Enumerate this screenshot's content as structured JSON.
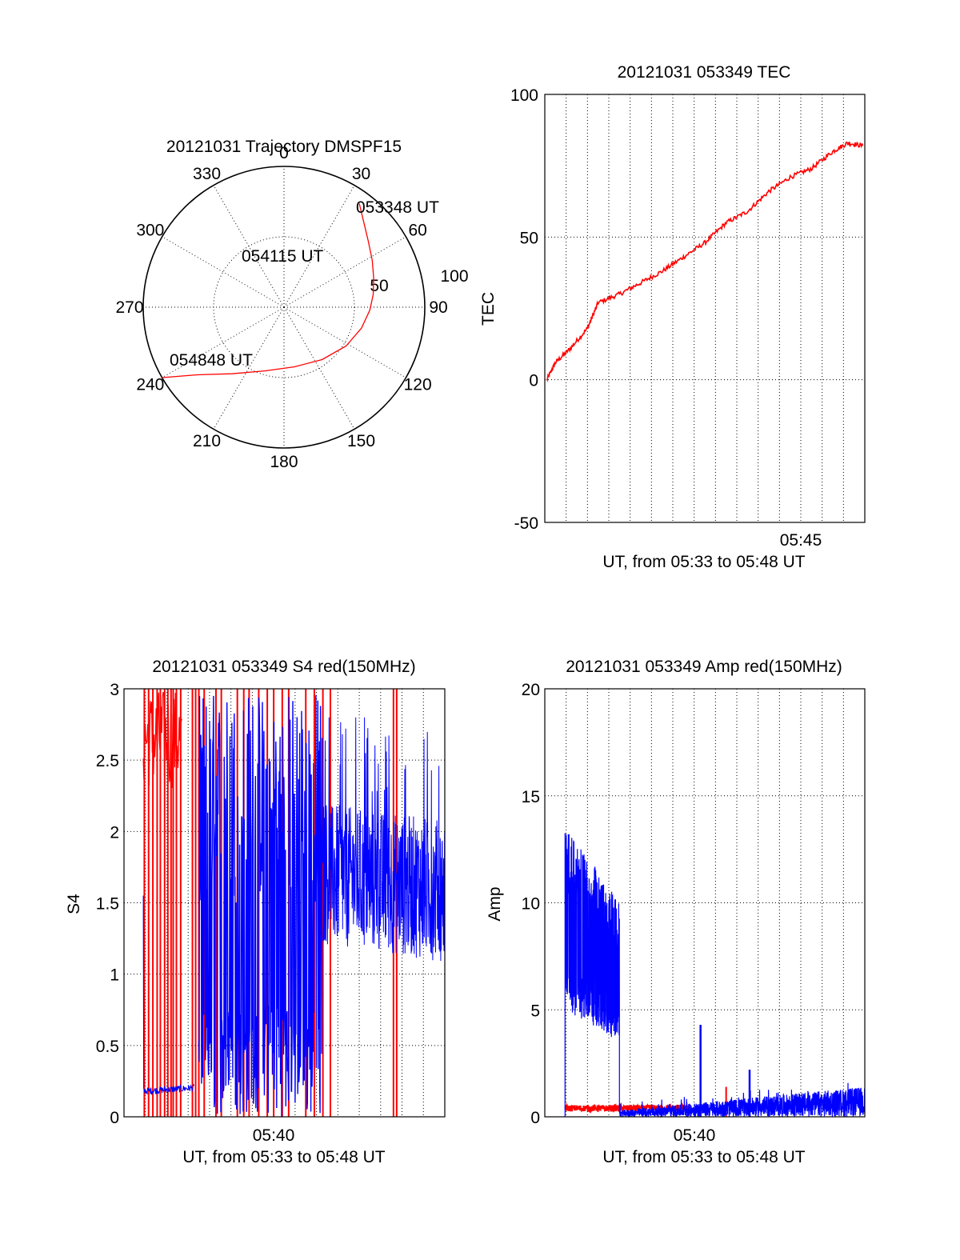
{
  "colors": {
    "red_channel": "#ff0000",
    "blue_channel": "#0000ff",
    "grid": "#000000",
    "background": "#ffffff"
  },
  "chart_data": [
    {
      "id": "trajectory",
      "type": "scatter",
      "projection": "polar",
      "title": "20121031 Trajectory DMSPF15",
      "angle_tick_labels": [
        "0",
        "30",
        "60",
        "90",
        "120",
        "150",
        "180",
        "210",
        "240",
        "270",
        "300",
        "330"
      ],
      "radial_tick_labels": [
        "50",
        "100"
      ],
      "zenith_range": [
        0,
        100
      ],
      "grid": true,
      "annotations": [
        "053348 UT",
        "054115 UT",
        "054848 UT"
      ],
      "series": [
        {
          "azimuth_deg": [
            36,
            44,
            52,
            62,
            72,
            82,
            92,
            105,
            122,
            144,
            170,
            196,
            218,
            232,
            240
          ],
          "zenith_deg": [
            91,
            82,
            76,
            71,
            67,
            64,
            61,
            57,
            52,
            46,
            43,
            47,
            60,
            78,
            100
          ]
        }
      ]
    },
    {
      "id": "tec",
      "type": "line",
      "title": "20121031 053349 TEC",
      "xlabel": "UT, from 05:33 to 05:48 UT",
      "ylabel": "TEC",
      "x_tick_labels": [
        "05:45"
      ],
      "y_tick_labels": [
        "100",
        "50",
        "0",
        "-50"
      ],
      "xlim_minutes": [
        0,
        15
      ],
      "ylim": [
        -50,
        100
      ],
      "grid": true,
      "series": [
        {
          "x_min": [
            0.1,
            0.5,
            1.2,
            2.0,
            2.5,
            3.5,
            4.5,
            5.5,
            6.5,
            7.5,
            8.5,
            9.5,
            10.5,
            11.5,
            12.5,
            13.5,
            14.2,
            14.9
          ],
          "values": [
            0,
            6,
            11,
            18,
            27,
            30,
            34,
            38,
            43,
            48,
            55,
            59,
            66,
            71,
            74,
            80,
            83,
            82
          ]
        }
      ]
    },
    {
      "id": "s4",
      "type": "line",
      "title": "20121031 053349 S4 red(150MHz)",
      "xlabel": "UT, from 05:33 to 05:48 UT",
      "ylabel": "S4",
      "x_tick_labels": [
        "05:40"
      ],
      "y_tick_labels": [
        "3",
        "2.5",
        "2",
        "1.5",
        "1",
        "0.5",
        "0"
      ],
      "xlim_minutes": [
        0,
        15
      ],
      "ylim": [
        0,
        3
      ],
      "grid": true,
      "series": [
        {
          "name_color": "red",
          "spike_x_min": [
            0.95,
            1.15,
            1.35,
            1.55,
            1.7,
            1.9,
            2.05,
            2.2,
            2.3,
            2.45,
            2.65,
            3.2,
            3.35,
            3.5,
            3.75,
            4.3,
            4.55,
            5.3,
            5.6,
            5.85,
            6.3,
            6.7,
            7.0,
            7.4,
            7.7,
            8.5,
            8.9,
            9.3,
            9.65,
            12.6,
            12.75
          ],
          "plateau_range_min": [
            0.9,
            2.7
          ],
          "plateau_values": [
            2.3,
            3.0
          ]
        },
        {
          "name_color": "blue",
          "quiet_range_min": [
            0.9,
            3.3
          ],
          "quiet_value": 0.18,
          "burst_range_min": [
            3.5,
            9.3
          ],
          "noisy_range_min": [
            9.3,
            15
          ],
          "noisy_values": [
            1.0,
            2.5
          ]
        }
      ]
    },
    {
      "id": "amp",
      "type": "line",
      "title": "20121031 053349 Amp red(150MHz)",
      "xlabel": "UT, from 05:33 to 05:48 UT",
      "ylabel": "Amp",
      "x_tick_labels": [
        "05:40"
      ],
      "y_tick_labels": [
        "20",
        "15",
        "10",
        "5",
        "0"
      ],
      "xlim_minutes": [
        0,
        15
      ],
      "ylim": [
        0,
        20
      ],
      "grid": true,
      "series": [
        {
          "name_color": "blue",
          "burst_range_min": [
            0.95,
            3.5
          ],
          "burst_range_values": [
            3.5,
            13.8
          ],
          "tail_range_min": [
            3.5,
            15
          ],
          "tail_values": [
            0,
            1.5
          ],
          "spikes": [
            {
              "x_min": 7.3,
              "value": 4.3
            },
            {
              "x_min": 9.6,
              "value": 2.2
            }
          ]
        },
        {
          "name_color": "red",
          "low_range_min": [
            0.95,
            6.8
          ],
          "low_value": 0.4,
          "spikes": [
            {
              "x_min": 8.5,
              "value": 1.4
            }
          ]
        }
      ]
    }
  ]
}
